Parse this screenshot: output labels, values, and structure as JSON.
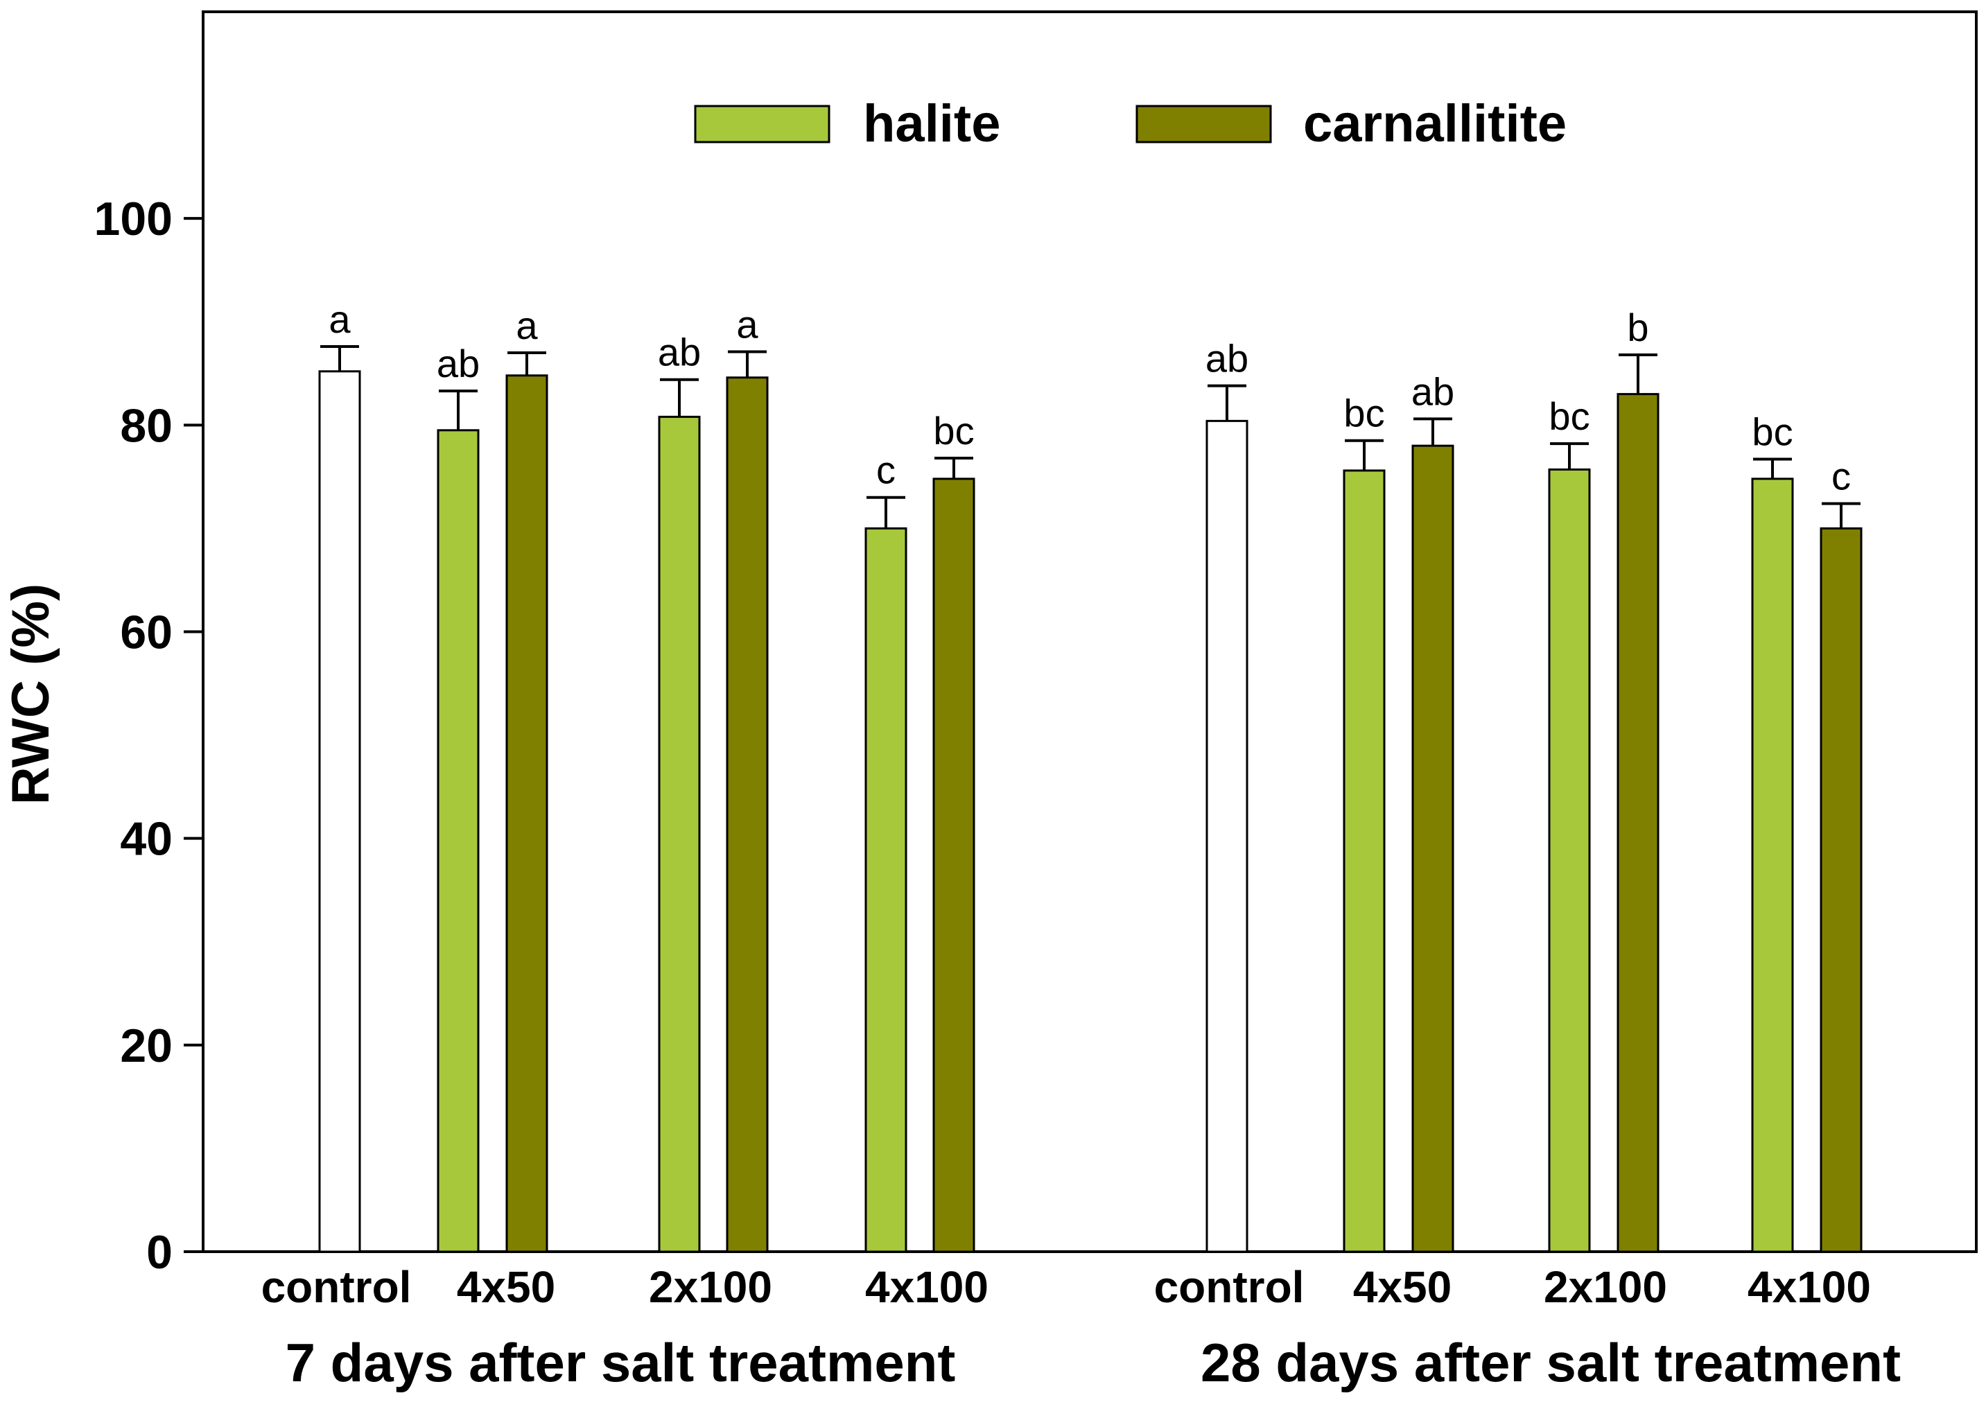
{
  "chart_data": {
    "type": "bar",
    "ylabel": "RWC (%)",
    "ylim": [
      0,
      120
    ],
    "yticks": [
      0,
      20,
      40,
      60,
      80,
      100
    ],
    "grid": false,
    "legend": {
      "placement": "top-center",
      "entries": [
        {
          "name": "halite",
          "color": "#a8c83c"
        },
        {
          "name": "carnallitite",
          "color": "#808000"
        }
      ]
    },
    "control_color": "#ffffff",
    "groups": [
      {
        "label": "7 days after salt treatment",
        "categories": [
          {
            "label": "control",
            "bars": [
              {
                "series": "control",
                "value": 85.2,
                "error": 2.4,
                "letter": "a"
              }
            ]
          },
          {
            "label": "4x50",
            "bars": [
              {
                "series": "halite",
                "value": 79.5,
                "error": 3.8,
                "letter": "ab"
              },
              {
                "series": "carnallitite",
                "value": 84.8,
                "error": 2.2,
                "letter": "a"
              }
            ]
          },
          {
            "label": "2x100",
            "bars": [
              {
                "series": "halite",
                "value": 80.8,
                "error": 3.6,
                "letter": "ab"
              },
              {
                "series": "carnallitite",
                "value": 84.6,
                "error": 2.5,
                "letter": "a"
              }
            ]
          },
          {
            "label": "4x100",
            "bars": [
              {
                "series": "halite",
                "value": 70.0,
                "error": 3.0,
                "letter": "c"
              },
              {
                "series": "carnallitite",
                "value": 74.8,
                "error": 2.0,
                "letter": "bc"
              }
            ]
          }
        ]
      },
      {
        "label": "28 days after salt treatment",
        "categories": [
          {
            "label": "control",
            "bars": [
              {
                "series": "control",
                "value": 80.4,
                "error": 3.4,
                "letter": "ab"
              }
            ]
          },
          {
            "label": "4x50",
            "bars": [
              {
                "series": "halite",
                "value": 75.6,
                "error": 2.9,
                "letter": "bc"
              },
              {
                "series": "carnallitite",
                "value": 78.0,
                "error": 2.6,
                "letter": "ab"
              }
            ]
          },
          {
            "label": "2x100",
            "bars": [
              {
                "series": "halite",
                "value": 75.7,
                "error": 2.5,
                "letter": "bc"
              },
              {
                "series": "carnallitite",
                "value": 83.0,
                "error": 3.8,
                "letter": "b"
              }
            ]
          },
          {
            "label": "4x100",
            "bars": [
              {
                "series": "halite",
                "value": 74.8,
                "error": 1.9,
                "letter": "bc"
              },
              {
                "series": "carnallitite",
                "value": 70.0,
                "error": 2.4,
                "letter": "c"
              }
            ]
          }
        ]
      }
    ]
  }
}
